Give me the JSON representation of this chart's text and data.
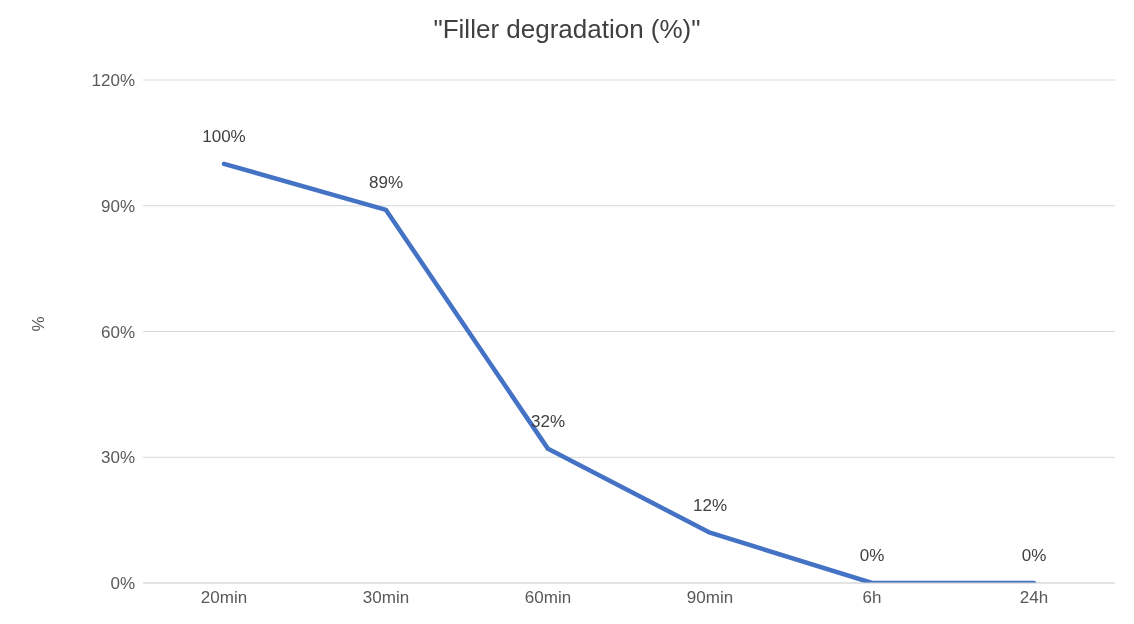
{
  "chart_data": {
    "type": "line",
    "title": "\"Filler degradation (%)\"",
    "ylabel": "%",
    "categories": [
      "20min",
      "30min",
      "60min",
      "90min",
      "6h",
      "24h"
    ],
    "series": [
      {
        "color": "#4472c4",
        "values": [
          100,
          89,
          32,
          12,
          0,
          0
        ],
        "value_labels": [
          "100%",
          "89%",
          "32%",
          "12%",
          "0%",
          "0%"
        ]
      }
    ],
    "ylim": [
      0,
      120
    ],
    "yticks": [
      {
        "value": 0,
        "label": "0%"
      },
      {
        "value": 30,
        "label": "30%"
      },
      {
        "value": 60,
        "label": "60%"
      },
      {
        "value": 90,
        "label": "90%"
      },
      {
        "value": 120,
        "label": "120%"
      }
    ],
    "grid": "y",
    "marker": "none",
    "line_style": "solid"
  }
}
